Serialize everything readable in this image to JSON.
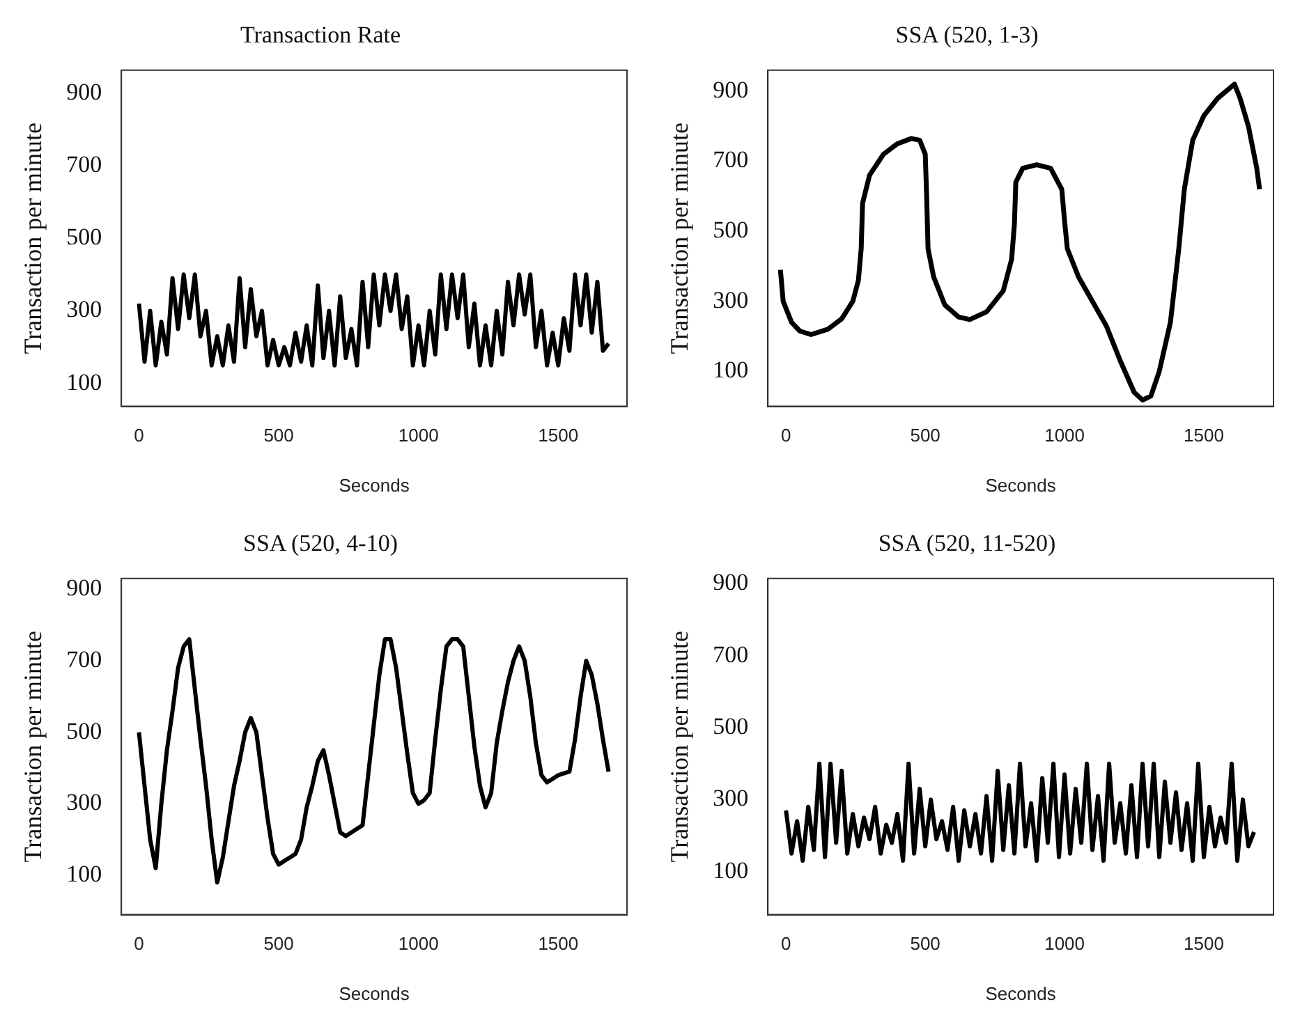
{
  "chart_data": [
    {
      "type": "line",
      "title": "Transaction Rate",
      "xlabel": "Seconds",
      "ylabel": "Transaction per minute",
      "xlim": [
        -63,
        1746
      ],
      "ylim": [
        37,
        963
      ],
      "xticks": [
        0,
        500,
        1000,
        1500
      ],
      "yticks": [
        100,
        300,
        500,
        700,
        900
      ],
      "grid": false,
      "x": [
        0,
        20,
        40,
        60,
        80,
        100,
        120,
        140,
        160,
        180,
        200,
        220,
        240,
        260,
        280,
        300,
        320,
        340,
        360,
        380,
        400,
        420,
        440,
        460,
        480,
        500,
        520,
        540,
        560,
        580,
        600,
        620,
        640,
        660,
        680,
        700,
        720,
        740,
        760,
        780,
        800,
        820,
        840,
        860,
        880,
        900,
        920,
        940,
        960,
        980,
        1000,
        1020,
        1040,
        1060,
        1080,
        1100,
        1120,
        1140,
        1160,
        1180,
        1200,
        1220,
        1240,
        1260,
        1280,
        1300,
        1320,
        1340,
        1360,
        1380,
        1400,
        1420,
        1440,
        1460,
        1480,
        1500,
        1520,
        1540,
        1560,
        1580,
        1600,
        1620,
        1640,
        1660,
        1680
      ],
      "series": [
        {
          "color": "#000000",
          "values": [
            320,
            160,
            300,
            150,
            270,
            180,
            390,
            250,
            400,
            280,
            400,
            230,
            300,
            150,
            230,
            150,
            260,
            160,
            390,
            200,
            360,
            230,
            300,
            150,
            220,
            150,
            200,
            150,
            240,
            160,
            260,
            150,
            370,
            170,
            300,
            150,
            340,
            170,
            250,
            150,
            380,
            200,
            400,
            260,
            400,
            300,
            400,
            250,
            340,
            150,
            260,
            150,
            300,
            180,
            400,
            250,
            400,
            280,
            400,
            200,
            320,
            150,
            260,
            150,
            300,
            180,
            380,
            260,
            400,
            290,
            400,
            200,
            300,
            150,
            240,
            150,
            280,
            190,
            400,
            260,
            400,
            240,
            380,
            190,
            210
          ]
        }
      ]
    },
    {
      "type": "line",
      "title": "SSA (520, 1-3)",
      "xlabel": "Seconds",
      "ylabel": "Transaction per minute",
      "xlim": [
        -65,
        1750
      ],
      "ylim": [
        0,
        960
      ],
      "xticks": [
        0,
        500,
        1000,
        1500
      ],
      "yticks": [
        100,
        300,
        500,
        700,
        900
      ],
      "grid": false,
      "x": [
        -20,
        -10,
        20,
        50,
        90,
        150,
        200,
        240,
        260,
        270,
        275,
        300,
        350,
        400,
        450,
        480,
        500,
        505,
        510,
        530,
        570,
        620,
        660,
        720,
        780,
        810,
        820,
        825,
        850,
        900,
        950,
        990,
        1000,
        1010,
        1050,
        1100,
        1150,
        1200,
        1250,
        1280,
        1310,
        1340,
        1380,
        1410,
        1430,
        1460,
        1500,
        1550,
        1610,
        1630,
        1660,
        1690,
        1700
      ],
      "series": [
        {
          "color": "#000000",
          "values": [
            390,
            300,
            240,
            215,
            205,
            220,
            250,
            300,
            360,
            450,
            580,
            660,
            720,
            750,
            765,
            760,
            720,
            600,
            450,
            370,
            290,
            255,
            248,
            270,
            330,
            420,
            520,
            640,
            680,
            690,
            680,
            620,
            530,
            450,
            370,
            300,
            230,
            130,
            40,
            18,
            30,
            100,
            240,
            450,
            620,
            760,
            830,
            880,
            920,
            880,
            800,
            680,
            620
          ]
        }
      ]
    },
    {
      "type": "line",
      "title": "SSA (520, 4-10)",
      "xlabel": "Seconds",
      "ylabel": "Transaction per minute",
      "xlim": [
        -63,
        1746
      ],
      "ylim": [
        -10,
        930
      ],
      "xticks": [
        0,
        500,
        1000,
        1500
      ],
      "yticks": [
        100,
        300,
        500,
        700,
        900
      ],
      "grid": false,
      "x": [
        0,
        20,
        40,
        60,
        80,
        100,
        120,
        140,
        160,
        180,
        200,
        220,
        240,
        260,
        280,
        300,
        320,
        340,
        360,
        380,
        400,
        420,
        440,
        460,
        480,
        500,
        520,
        540,
        560,
        580,
        600,
        620,
        640,
        660,
        680,
        700,
        720,
        740,
        760,
        780,
        800,
        820,
        840,
        860,
        880,
        900,
        920,
        940,
        960,
        980,
        1000,
        1020,
        1040,
        1060,
        1080,
        1100,
        1120,
        1140,
        1160,
        1180,
        1200,
        1220,
        1240,
        1260,
        1280,
        1300,
        1320,
        1340,
        1360,
        1380,
        1400,
        1420,
        1440,
        1460,
        1480,
        1500,
        1520,
        1540,
        1560,
        1580,
        1600,
        1620,
        1640,
        1660,
        1680
      ],
      "series": [
        {
          "color": "#000000",
          "values": [
            500,
            350,
            200,
            120,
            300,
            450,
            560,
            680,
            740,
            760,
            620,
            480,
            350,
            200,
            80,
            150,
            250,
            350,
            420,
            500,
            540,
            500,
            380,
            260,
            160,
            130,
            140,
            150,
            160,
            200,
            290,
            350,
            420,
            450,
            380,
            300,
            220,
            210,
            220,
            230,
            240,
            380,
            520,
            660,
            760,
            760,
            680,
            560,
            440,
            330,
            300,
            310,
            330,
            480,
            620,
            740,
            760,
            760,
            740,
            600,
            460,
            350,
            290,
            330,
            470,
            560,
            640,
            700,
            740,
            700,
            600,
            470,
            380,
            360,
            370,
            380,
            385,
            390,
            480,
            600,
            700,
            660,
            580,
            480,
            390
          ]
        }
      ]
    },
    {
      "type": "line",
      "title": "SSA (520, 11-520)",
      "xlabel": "Seconds",
      "ylabel": "Transaction per minute",
      "xlim": [
        -65,
        1750
      ],
      "ylim": [
        -20,
        915
      ],
      "xticks": [
        0,
        500,
        1000,
        1500
      ],
      "yticks": [
        100,
        300,
        500,
        700,
        900
      ],
      "grid": false,
      "x": [
        0,
        20,
        40,
        60,
        80,
        100,
        120,
        140,
        160,
        180,
        200,
        220,
        240,
        260,
        280,
        300,
        320,
        340,
        360,
        380,
        400,
        420,
        440,
        460,
        480,
        500,
        520,
        540,
        560,
        580,
        600,
        620,
        640,
        660,
        680,
        700,
        720,
        740,
        760,
        780,
        800,
        820,
        840,
        860,
        880,
        900,
        920,
        940,
        960,
        980,
        1000,
        1020,
        1040,
        1060,
        1080,
        1100,
        1120,
        1140,
        1160,
        1180,
        1200,
        1220,
        1240,
        1260,
        1280,
        1300,
        1320,
        1340,
        1360,
        1380,
        1400,
        1420,
        1440,
        1460,
        1480,
        1500,
        1520,
        1540,
        1560,
        1580,
        1600,
        1620,
        1640,
        1660,
        1680
      ],
      "series": [
        {
          "color": "#000000",
          "values": [
            270,
            150,
            240,
            130,
            280,
            160,
            400,
            140,
            400,
            180,
            380,
            150,
            260,
            170,
            250,
            190,
            280,
            150,
            230,
            180,
            260,
            130,
            400,
            150,
            330,
            170,
            300,
            190,
            240,
            160,
            280,
            130,
            270,
            170,
            260,
            150,
            310,
            130,
            380,
            160,
            340,
            150,
            400,
            170,
            290,
            130,
            360,
            180,
            400,
            140,
            370,
            150,
            330,
            180,
            400,
            160,
            310,
            130,
            400,
            180,
            290,
            150,
            340,
            140,
            400,
            170,
            400,
            140,
            350,
            180,
            320,
            160,
            290,
            130,
            400,
            140,
            280,
            170,
            250,
            180,
            400,
            130,
            300,
            170,
            210
          ]
        }
      ]
    }
  ]
}
